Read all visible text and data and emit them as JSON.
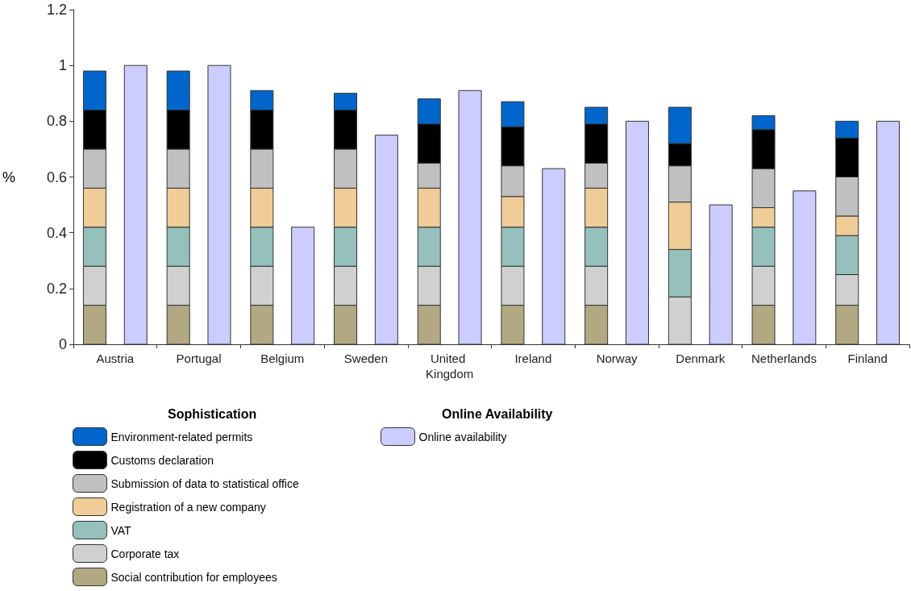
{
  "chart_data": {
    "type": "bar",
    "ylabel": "%",
    "categories": [
      "Austria",
      "Portugal",
      "Belgium",
      "Sweden",
      "United Kingdom",
      "Ireland",
      "Norway",
      "Denmark",
      "Netherlands",
      "Finland"
    ],
    "series": [
      {
        "name": "Social contribution for employees",
        "color": "#b2a882",
        "values": [
          0.14,
          0.14,
          0.14,
          0.14,
          0.14,
          0.14,
          0.14,
          null,
          0.14,
          0.14
        ],
        "base": [
          0,
          0,
          0,
          0,
          0,
          0,
          0,
          null,
          0,
          0
        ]
      },
      {
        "name": "Corporate tax",
        "color": "#d0d0d0",
        "values": [
          0.14,
          0.14,
          0.14,
          0.14,
          0.14,
          0.14,
          0.14,
          0.17,
          0.14,
          0.11
        ],
        "base": [
          0.14,
          0.14,
          0.14,
          0.14,
          0.14,
          0.14,
          0.14,
          0,
          0.14,
          0.14
        ]
      },
      {
        "name": "VAT",
        "color": "#96c0bc",
        "values": [
          0.14,
          0.14,
          0.14,
          0.14,
          0.14,
          0.14,
          0.14,
          0.17,
          0.14,
          0.14
        ],
        "base": [
          0.28,
          0.28,
          0.28,
          0.28,
          0.28,
          0.28,
          0.28,
          0.17,
          0.28,
          0.25
        ]
      },
      {
        "name": "Registration of a new company",
        "color": "#f0cc98",
        "values": [
          0.14,
          0.14,
          0.14,
          0.14,
          0.14,
          0.11,
          0.14,
          0.17,
          0.07,
          0.07
        ],
        "base": [
          0.42,
          0.42,
          0.42,
          0.42,
          0.42,
          0.42,
          0.42,
          0.34,
          0.42,
          0.39
        ]
      },
      {
        "name": "Submission of data to statistical office",
        "color": "#c0c0c0",
        "values": [
          0.14,
          0.14,
          0.14,
          0.14,
          0.09,
          0.11,
          0.09,
          0.13,
          0.14,
          0.14
        ],
        "base": [
          0.56,
          0.56,
          0.56,
          0.56,
          0.56,
          0.53,
          0.56,
          0.51,
          0.49,
          0.46
        ]
      },
      {
        "name": "Customs declaration",
        "color": "#000000",
        "values": [
          0.14,
          0.14,
          0.14,
          0.14,
          0.14,
          0.14,
          0.14,
          0.08,
          0.14,
          0.14
        ],
        "base": [
          0.7,
          0.7,
          0.7,
          0.7,
          0.65,
          0.64,
          0.65,
          0.64,
          0.63,
          0.6
        ]
      },
      {
        "name": "Environment-related permits",
        "color": "#0066cc",
        "values": [
          0.14,
          0.14,
          0.07,
          0.06,
          0.09,
          0.09,
          0.06,
          0.13,
          0.05,
          0.06
        ],
        "base": [
          0.84,
          0.84,
          0.84,
          0.84,
          0.79,
          0.78,
          0.79,
          0.72,
          0.77,
          0.74
        ]
      },
      {
        "name": "Online availability",
        "color": "#ccccff",
        "values": [
          1,
          1,
          0.42,
          0.75,
          0.91,
          0.63,
          0.8,
          0.5,
          0.55,
          0.8
        ]
      }
    ],
    "ylim": [
      0,
      1.2
    ],
    "yticks": [
      0,
      0.2,
      0.4,
      0.6,
      0.8,
      1,
      1.2
    ],
    "grid": false,
    "legend": "bottom",
    "annotations": [
      "Sophistication",
      "Online Availability"
    ]
  }
}
